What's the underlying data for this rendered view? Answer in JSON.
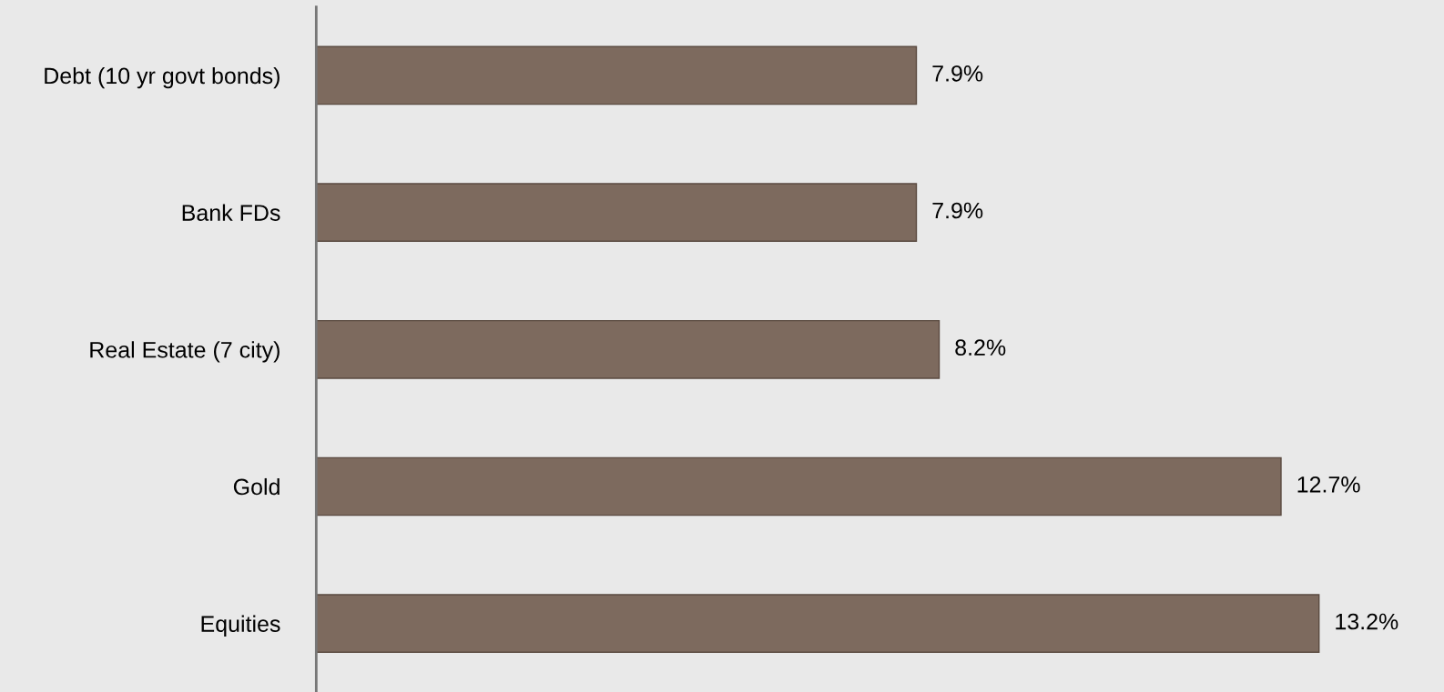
{
  "chart_data": {
    "type": "bar",
    "orientation": "horizontal",
    "categories": [
      "Debt (10 yr govt bonds)",
      "Bank FDs",
      "Real Estate (7 city)",
      "Gold",
      "Equities"
    ],
    "values": [
      7.9,
      7.9,
      8.2,
      12.7,
      13.2
    ],
    "value_labels": [
      "7.9%",
      "7.9%",
      "8.2%",
      "12.7%",
      "13.2%"
    ],
    "color": "#7d6a5e",
    "grid": false,
    "legend": false
  }
}
